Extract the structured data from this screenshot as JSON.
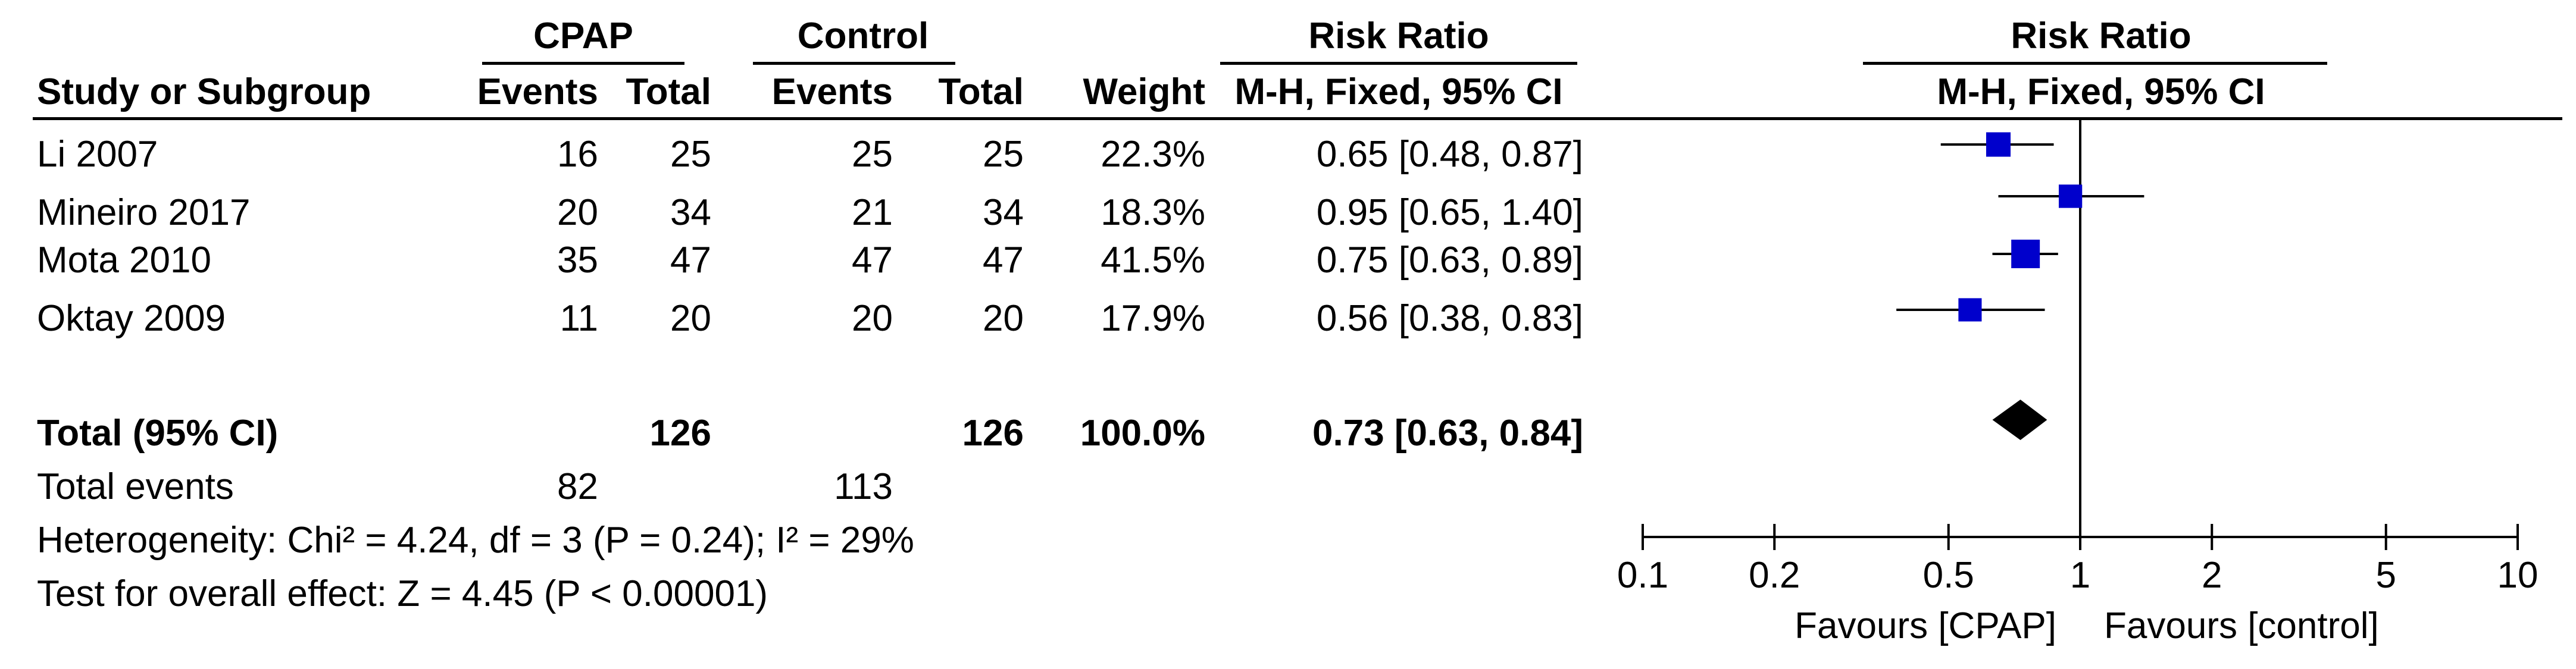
{
  "header": {
    "cpap": "CPAP",
    "control": "Control",
    "risk_ratio": "Risk Ratio",
    "plot_risk_ratio": "Risk Ratio",
    "study": "Study or Subgroup",
    "events1": "Events",
    "total1": "Total",
    "events2": "Events",
    "total2": "Total",
    "weight": "Weight",
    "method": "M-H, Fixed, 95% CI",
    "plot_method": "M-H, Fixed, 95% CI"
  },
  "studies": [
    {
      "name": "Li 2007",
      "events1": "16",
      "total1": "25",
      "events2": "25",
      "total2": "25",
      "weight": "22.3%",
      "ci_text": "0.65 [0.48, 0.87]"
    },
    {
      "name": "Mineiro 2017",
      "events1": "20",
      "total1": "34",
      "events2": "21",
      "total2": "34",
      "weight": "18.3%",
      "ci_text": "0.95 [0.65, 1.40]"
    },
    {
      "name": "Mota 2010",
      "events1": "35",
      "total1": "47",
      "events2": "47",
      "total2": "47",
      "weight": "41.5%",
      "ci_text": "0.75 [0.63, 0.89]"
    },
    {
      "name": "Oktay 2009",
      "events1": "11",
      "total1": "20",
      "events2": "20",
      "total2": "20",
      "weight": "17.9%",
      "ci_text": "0.56 [0.38, 0.83]"
    }
  ],
  "total": {
    "label": "Total (95% CI)",
    "total1": "126",
    "total2": "126",
    "weight": "100.0%",
    "ci_text": "0.73 [0.63, 0.84]"
  },
  "total_events": {
    "label": "Total events",
    "events1": "82",
    "events2": "113"
  },
  "heterogeneity": "Heterogeneity: Chi² = 4.24, df = 3 (P = 0.24); I² = 29%",
  "overall_effect": "Test for overall effect: Z = 4.45 (P < 0.00001)",
  "axis": {
    "favours_left": "Favours [CPAP]",
    "favours_right": "Favours [control]"
  },
  "colors": {
    "marker": "#0000cc",
    "line": "#000000"
  },
  "chart_data": {
    "type": "forest",
    "title": "Risk Ratio",
    "xlabel": "",
    "x_scale": "log",
    "xlim": [
      0.1,
      10
    ],
    "x_ticks": [
      0.1,
      0.2,
      0.5,
      1,
      2,
      5,
      10
    ],
    "x_tick_labels": [
      "0.1",
      "0.2",
      "0.5",
      "1",
      "2",
      "5",
      "10"
    ],
    "null_value": 1,
    "series": [
      {
        "name": "Li 2007",
        "estimate": 0.65,
        "lower": 0.48,
        "upper": 0.87,
        "weight": 22.3
      },
      {
        "name": "Mineiro 2017",
        "estimate": 0.95,
        "lower": 0.65,
        "upper": 1.4,
        "weight": 18.3
      },
      {
        "name": "Mota 2010",
        "estimate": 0.75,
        "lower": 0.63,
        "upper": 0.89,
        "weight": 41.5
      },
      {
        "name": "Oktay 2009",
        "estimate": 0.56,
        "lower": 0.38,
        "upper": 0.83,
        "weight": 17.9
      }
    ],
    "pooled": {
      "name": "Total (95% CI)",
      "estimate": 0.73,
      "lower": 0.63,
      "upper": 0.84
    }
  }
}
